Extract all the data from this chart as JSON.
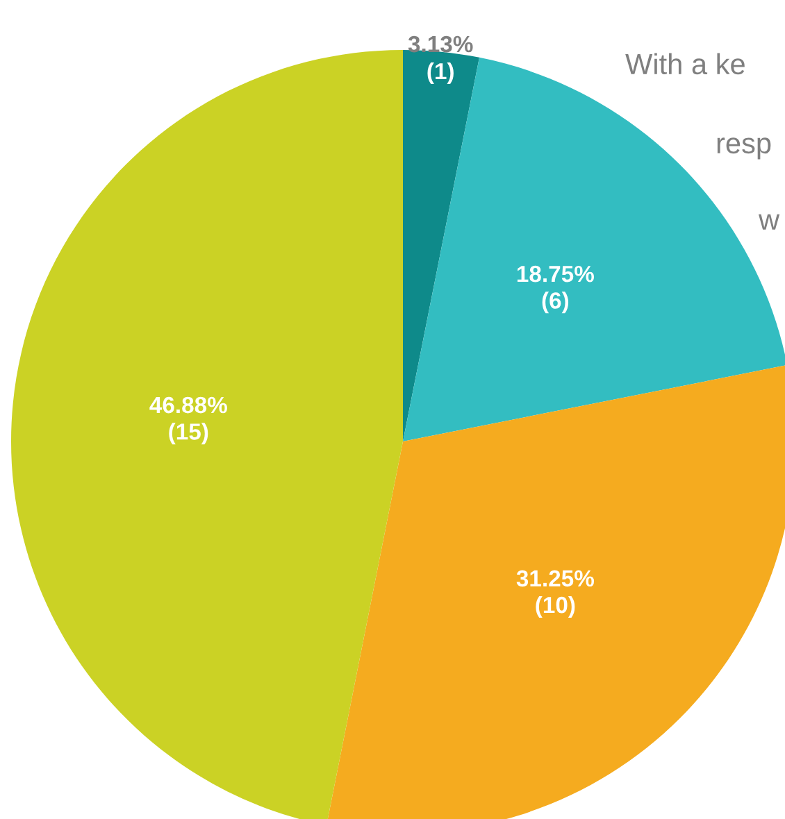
{
  "chart_data": {
    "type": "pie",
    "categories": [
      null,
      null,
      null,
      null
    ],
    "values": [
      1,
      6,
      10,
      15
    ],
    "colors": [
      "#0e8a8a",
      "#33bdc1",
      "#f5ab1f",
      "#cbd225"
    ],
    "value_labels": [
      "3.13%\n(1)",
      "18.75%\n(6)",
      "31.25%\n(10)",
      "46.88%\n(15)"
    ],
    "annotations": [
      "With a ke",
      "resp",
      "w"
    ],
    "legend": false
  }
}
